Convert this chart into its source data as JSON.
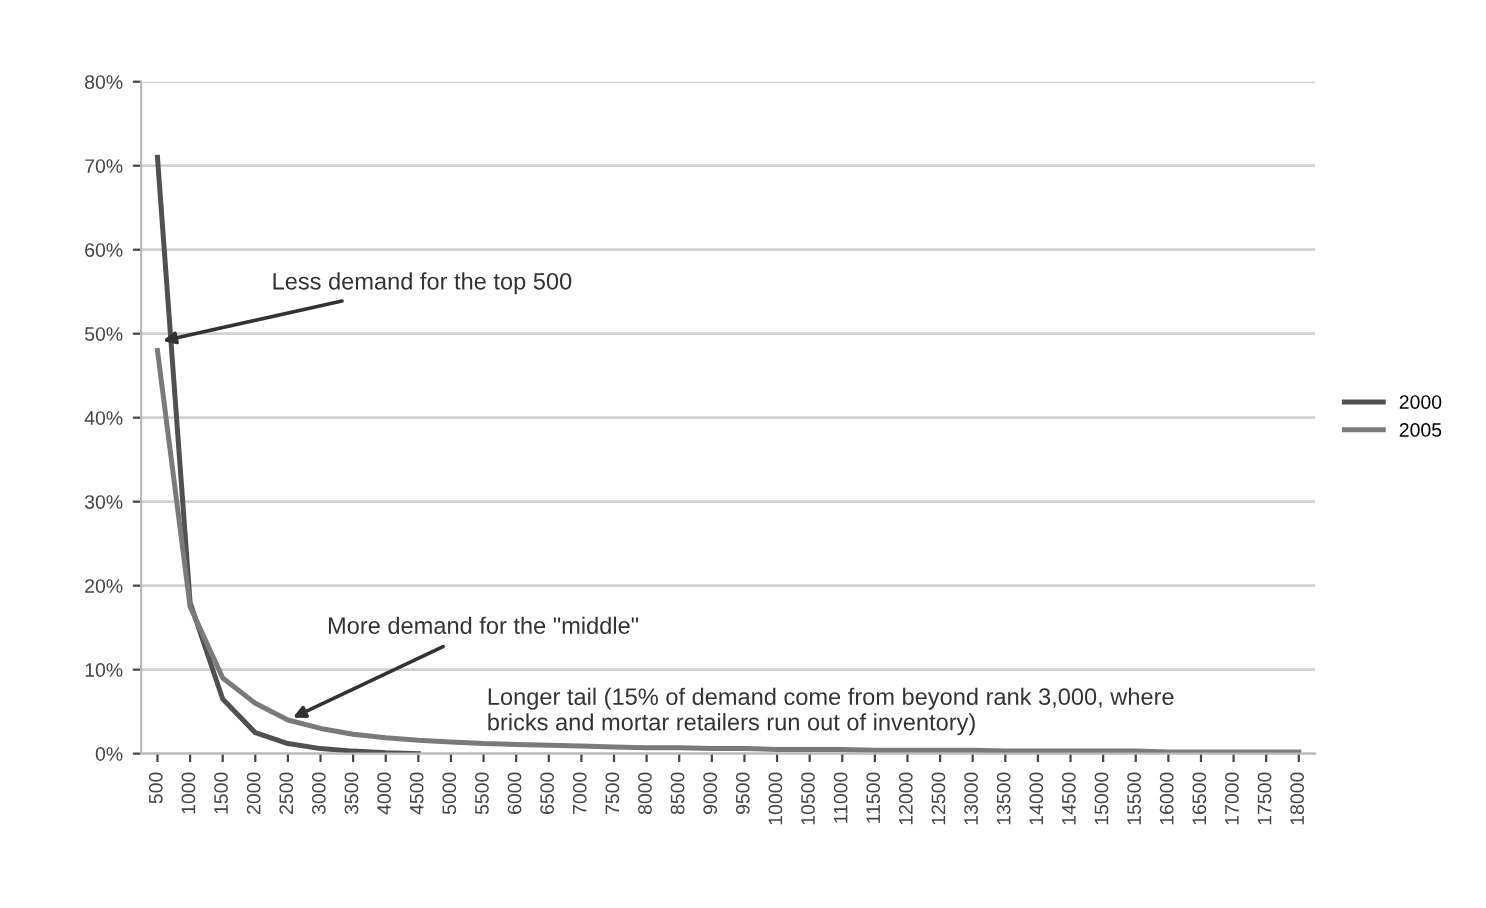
{
  "chart_data": {
    "type": "line",
    "categories": [
      "500",
      "1000",
      "1500",
      "2000",
      "2500",
      "3000",
      "3500",
      "4000",
      "4500",
      "5000",
      "5500",
      "6000",
      "6500",
      "7000",
      "7500",
      "8000",
      "8500",
      "9000",
      "9500",
      "10000",
      "10500",
      "11000",
      "11500",
      "12000",
      "12500",
      "13000",
      "13500",
      "14000",
      "14500",
      "15000",
      "15500",
      "16000",
      "16500",
      "17000",
      "17500",
      "18000"
    ],
    "series": [
      {
        "name": "2000",
        "color": "#505050",
        "values": [
          71,
          18,
          6.5,
          2.5,
          1.2,
          0.6,
          0.3,
          0.1,
          0,
          null,
          null,
          null,
          null,
          null,
          null,
          null,
          null,
          null,
          null,
          null,
          null,
          null,
          null,
          null,
          null,
          null,
          null,
          null,
          null,
          null,
          null,
          null,
          null,
          null,
          null,
          null
        ]
      },
      {
        "name": "2005",
        "color": "#7a7a7a",
        "values": [
          48,
          17.5,
          9,
          6,
          4,
          3,
          2.3,
          1.9,
          1.6,
          1.4,
          1.2,
          1.1,
          1.0,
          0.9,
          0.8,
          0.7,
          0.7,
          0.6,
          0.6,
          0.5,
          0.5,
          0.5,
          0.4,
          0.4,
          0.4,
          0.4,
          0.3,
          0.3,
          0.3,
          0.3,
          0.3,
          0.2,
          0.2,
          0.2,
          0.2,
          0.2
        ]
      }
    ],
    "ylim": [
      0,
      80
    ],
    "yticks": [
      {
        "value": 0,
        "label": "0%"
      },
      {
        "value": 10,
        "label": "10%"
      },
      {
        "value": 20,
        "label": "20%"
      },
      {
        "value": 30,
        "label": "30%"
      },
      {
        "value": 40,
        "label": "40%"
      },
      {
        "value": 50,
        "label": "50%"
      },
      {
        "value": 60,
        "label": "60%"
      },
      {
        "value": 70,
        "label": "70%"
      },
      {
        "value": 80,
        "label": "80%"
      }
    ],
    "grid": "y",
    "legend": "right",
    "marker": "none",
    "line_style": "solid",
    "annotations": [
      {
        "text": "Less demand for the top 500",
        "x": "500",
        "y": 49
      },
      {
        "text": "More demand for the \"middle\"",
        "x": "2500",
        "y": 4
      },
      "Longer tail (15% of demand come from beyond rank 3,000, where bricks and mortar retailers run out of inventory)"
    ]
  }
}
